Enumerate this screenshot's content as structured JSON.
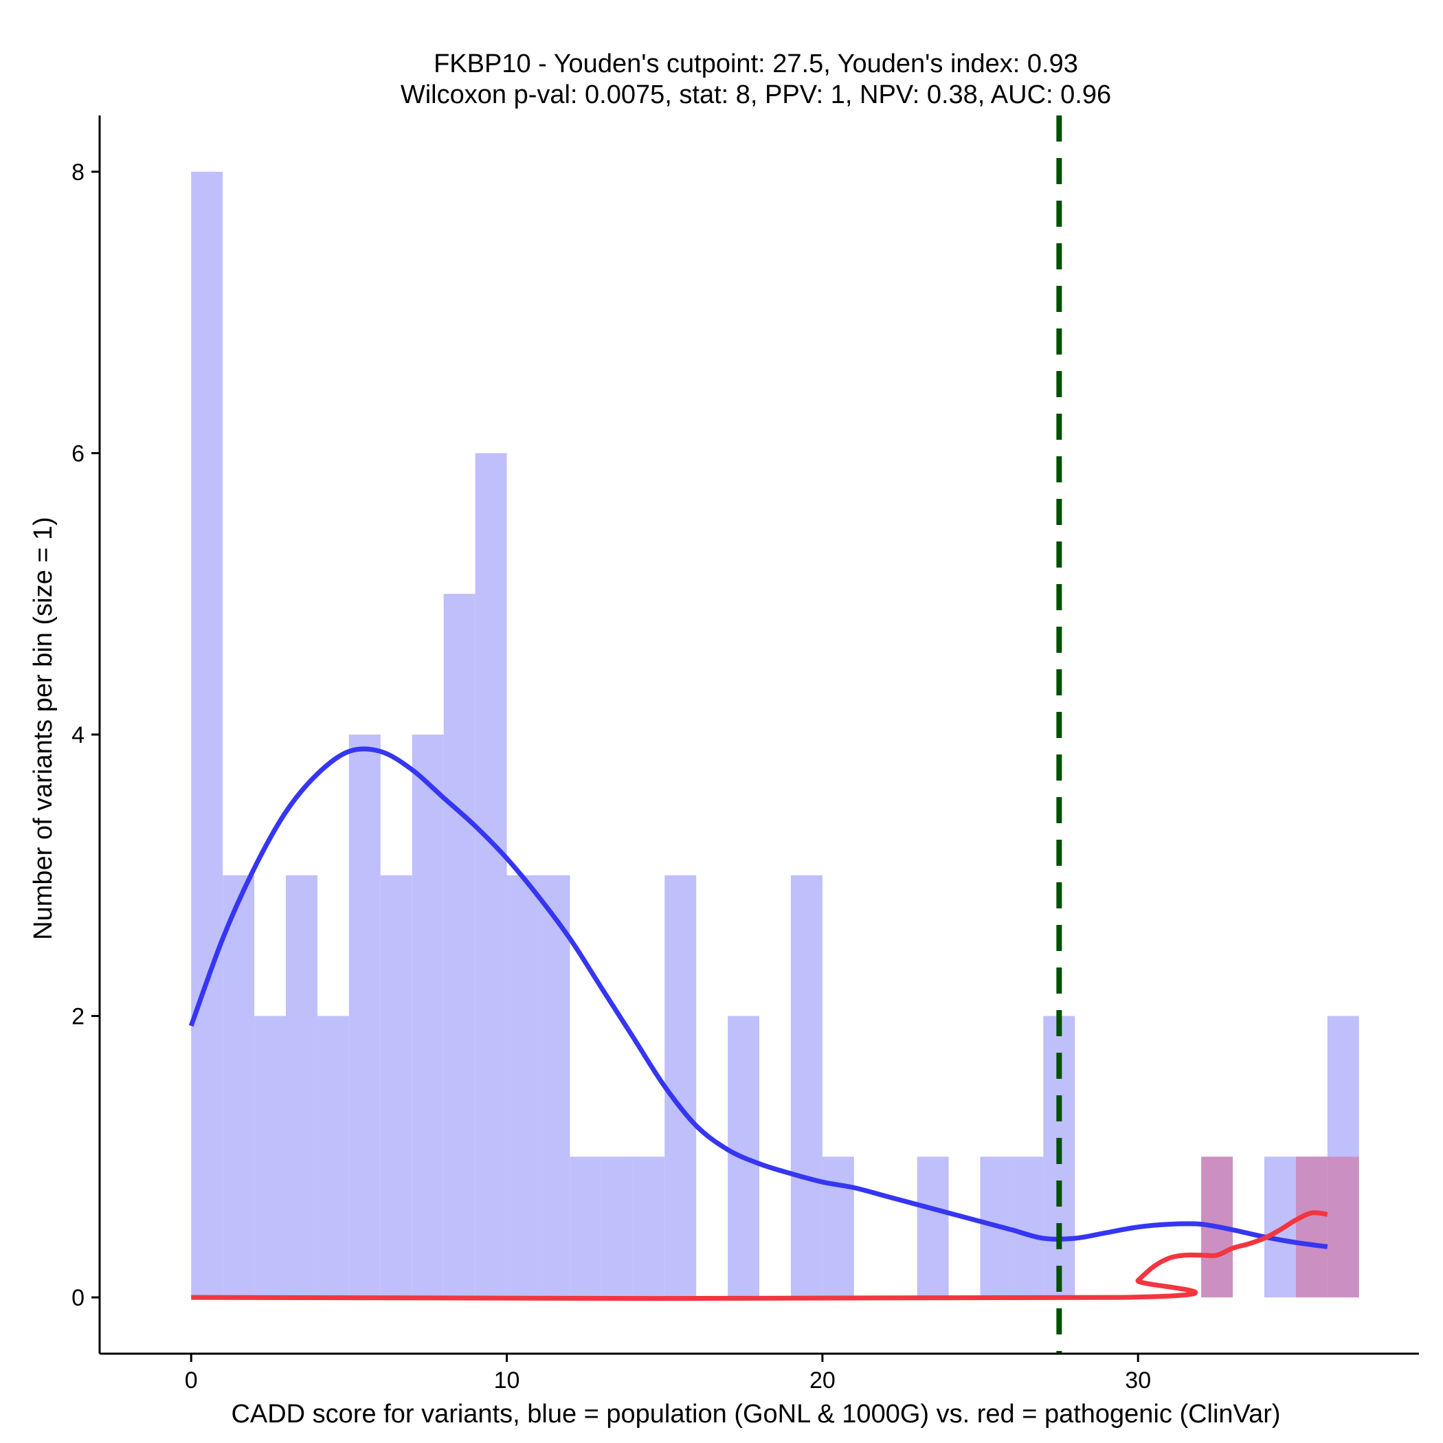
{
  "chart_data": {
    "type": "histogram",
    "title_line1": "FKBP10 - Youden's cutpoint: 27.5, Youden's index: 0.93",
    "title_line2": "Wilcoxon p-val: 0.0075, stat: 8, PPV: 1, NPV: 0.38, AUC: 0.96",
    "xlabel": "CADD score for variants, blue = population (GoNL & 1000G) vs. red = pathogenic (ClinVar)",
    "ylabel": "Number of variants per bin (size = 1)",
    "xlim": [
      -2.9,
      38.9
    ],
    "ylim": [
      -0.4,
      8.4
    ],
    "x_ticks": [
      0,
      10,
      20,
      30
    ],
    "y_ticks": [
      0,
      2,
      4,
      6,
      8
    ],
    "bin_size": 1,
    "cutpoint": 27.5,
    "colors": {
      "population_bar": "#bfbffb",
      "pathogenic_bar": "#cc8fc2",
      "population_line": "#3636f2",
      "pathogenic_line": "#f2363f",
      "cutpoint_line": "#005000"
    },
    "series": [
      {
        "name": "population (GoNL & 1000G)",
        "bin_starts": [
          0,
          1,
          2,
          3,
          4,
          5,
          6,
          7,
          8,
          9,
          10,
          11,
          12,
          13,
          14,
          15,
          17,
          19,
          20,
          23,
          25,
          26,
          27,
          34,
          35,
          36
        ],
        "counts": [
          8,
          3,
          2,
          3,
          2,
          4,
          3,
          4,
          5,
          6,
          3,
          3,
          1,
          1,
          1,
          3,
          2,
          3,
          1,
          1,
          1,
          1,
          2,
          1,
          1,
          2
        ]
      },
      {
        "name": "pathogenic (ClinVar)",
        "bin_starts": [
          32,
          35,
          36
        ],
        "counts": [
          1,
          1,
          1
        ]
      }
    ],
    "density_population": {
      "x": [
        0,
        1,
        2,
        3,
        4,
        5,
        6,
        7,
        8,
        9,
        10,
        11,
        12,
        13,
        14,
        15,
        16,
        17,
        18,
        19,
        20,
        21,
        22,
        23,
        24,
        25,
        26,
        27,
        28,
        29,
        30,
        31,
        32,
        33,
        34,
        35,
        36
      ],
      "y": [
        1.93,
        2.55,
        3.05,
        3.45,
        3.72,
        3.88,
        3.88,
        3.75,
        3.55,
        3.35,
        3.12,
        2.85,
        2.55,
        2.2,
        1.85,
        1.5,
        1.22,
        1.05,
        0.95,
        0.88,
        0.82,
        0.78,
        0.72,
        0.66,
        0.6,
        0.54,
        0.48,
        0.42,
        0.42,
        0.46,
        0.5,
        0.52,
        0.52,
        0.48,
        0.43,
        0.39,
        0.36
      ]
    },
    "density_pathogenic": {
      "x": [
        0,
        29.5,
        30,
        30.5,
        31,
        31.5,
        32,
        32.5,
        33,
        33.5,
        34,
        34.5,
        35,
        35.5,
        36
      ],
      "y": [
        0,
        0,
        0.12,
        0.22,
        0.28,
        0.3,
        0.3,
        0.3,
        0.35,
        0.38,
        0.42,
        0.48,
        0.55,
        0.6,
        0.59
      ]
    }
  }
}
